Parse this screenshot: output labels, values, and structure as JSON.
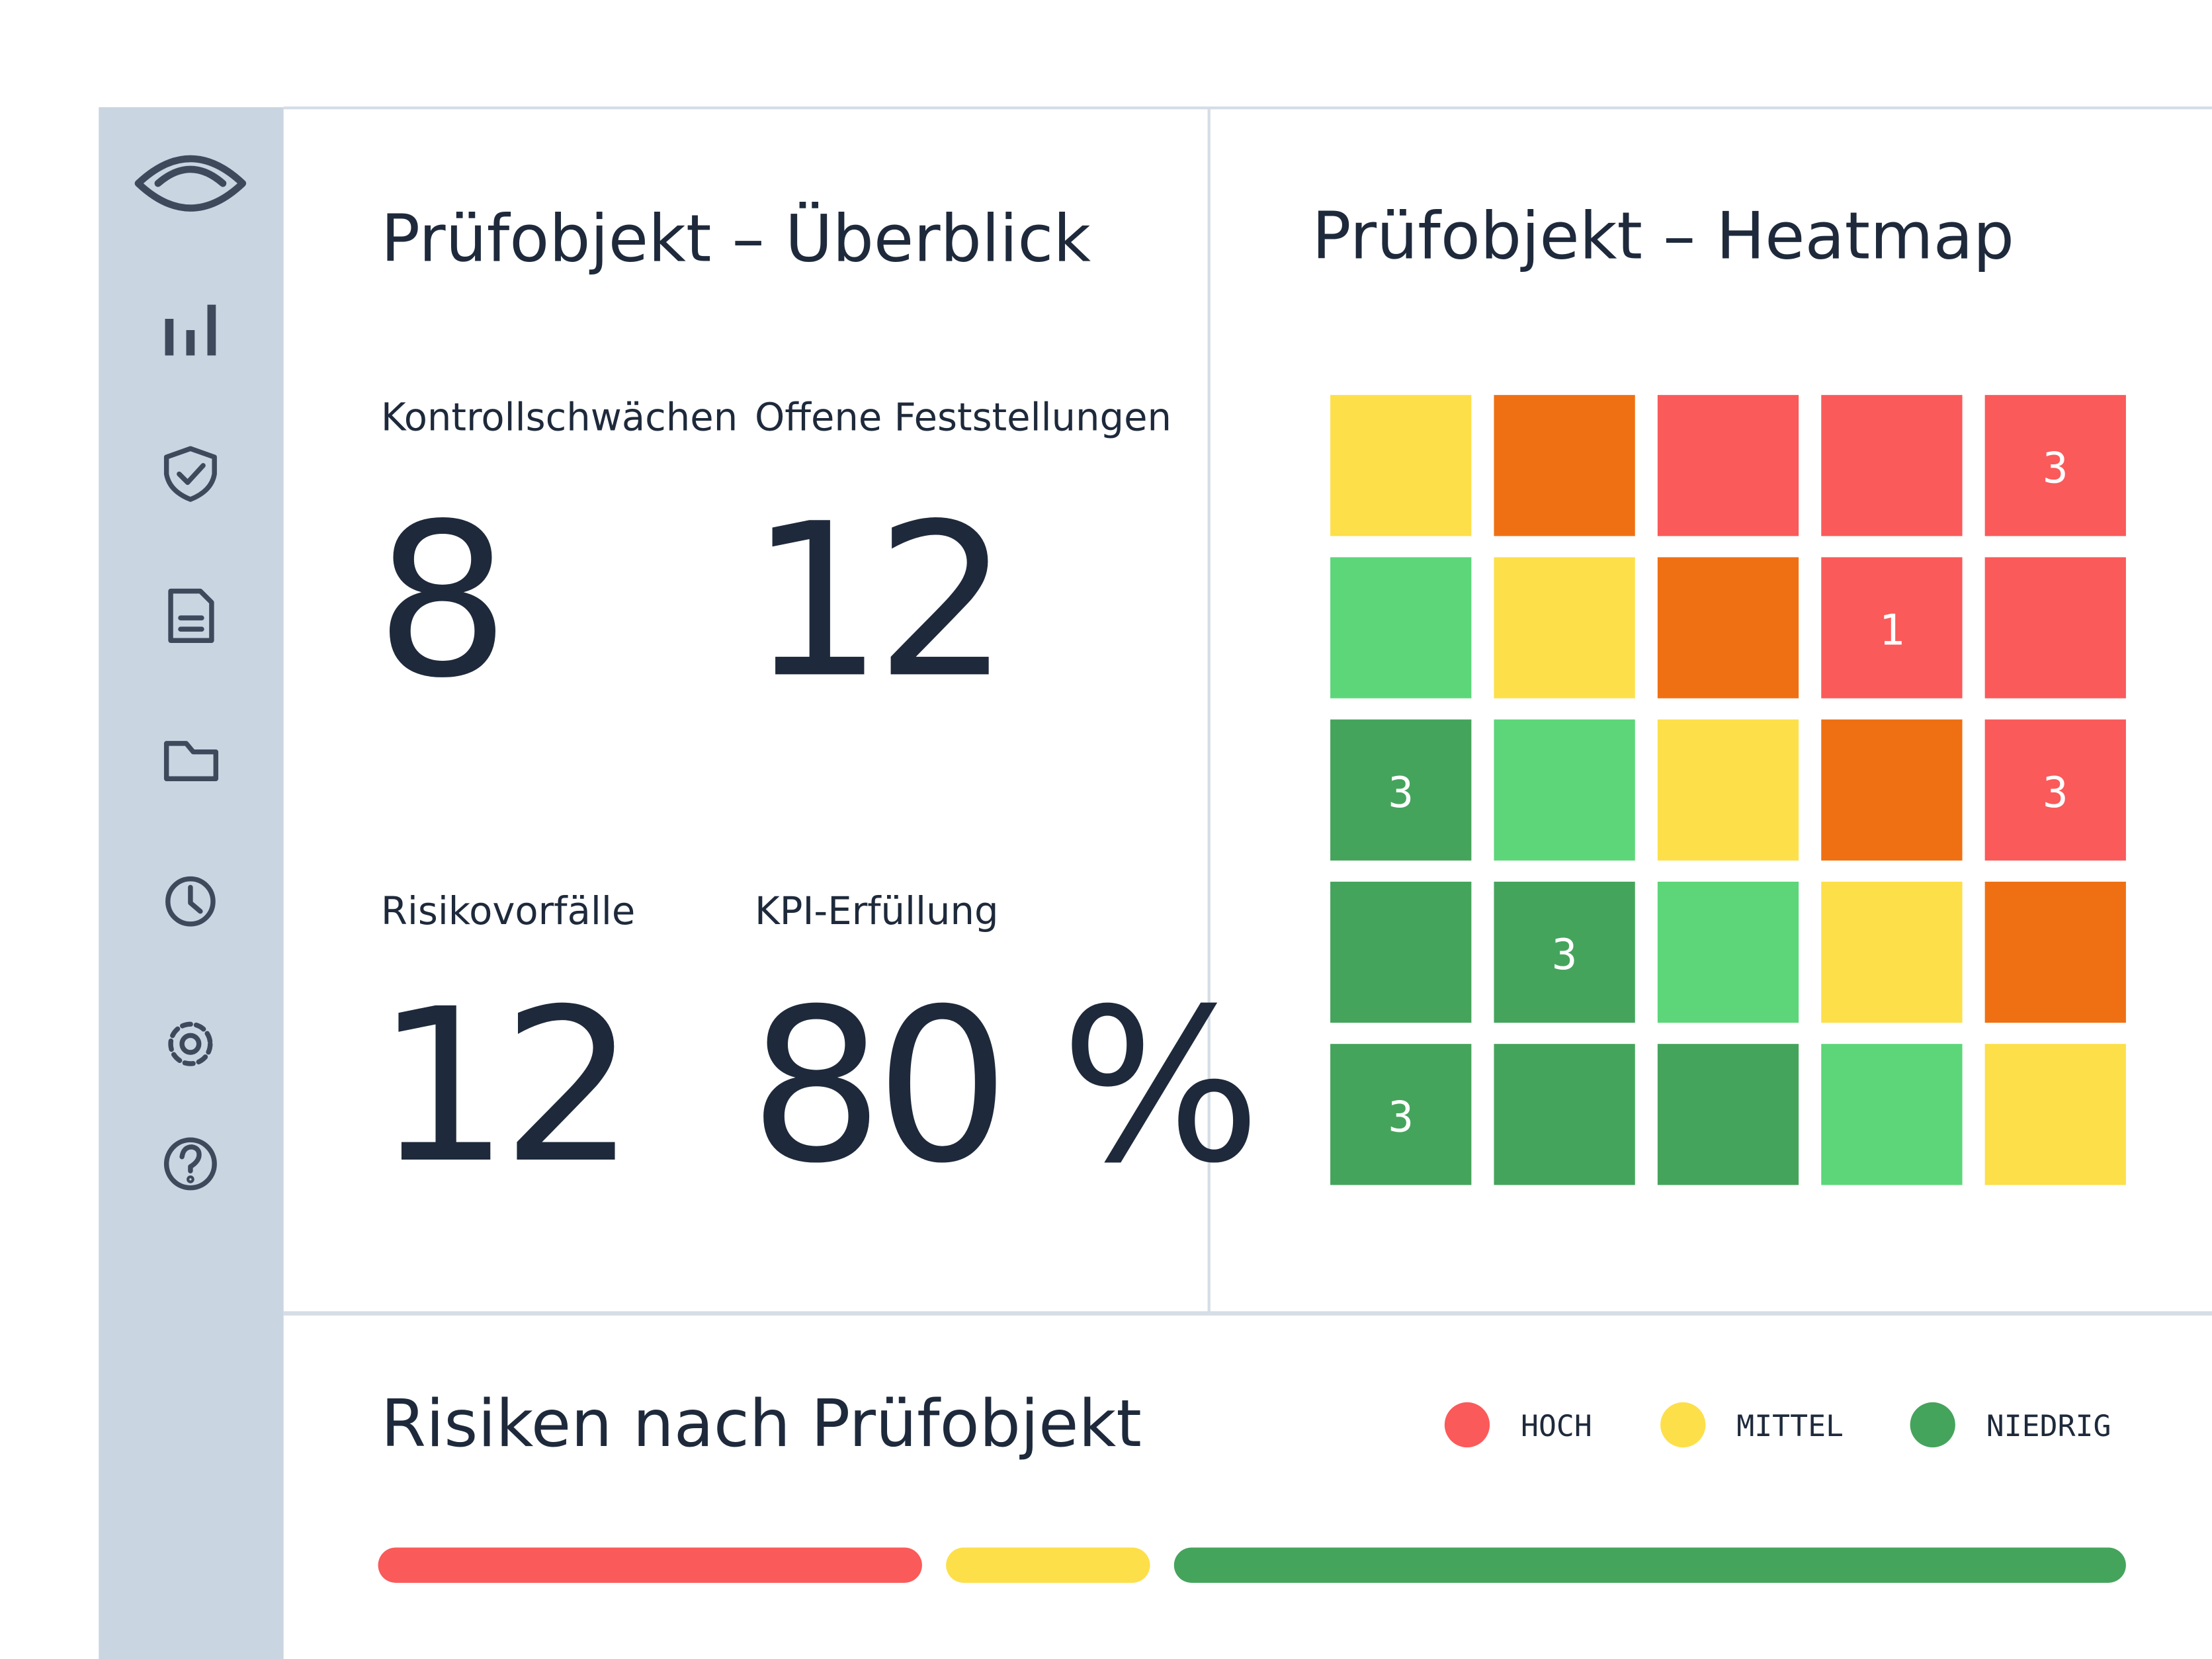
{
  "overview": {
    "title": "Prüfobjekt – Überblick",
    "kpis": [
      {
        "label": "Kontrollschwächen",
        "value": "8"
      },
      {
        "label": "Offene Feststellungen",
        "value": "12"
      },
      {
        "label": "Risikovorfälle",
        "value": "12"
      },
      {
        "label": "KPI-Erfüllung",
        "value": "80 %"
      }
    ]
  },
  "heatmap": {
    "title": "Prüfobjekt – Heatmap",
    "rows": [
      [
        {
          "color": "#fddf4a"
        },
        {
          "color": "#ef7013"
        },
        {
          "color": "#fa5a5a"
        },
        {
          "color": "#fa5a5a"
        },
        {
          "color": "#fa5a5a",
          "value": "3"
        }
      ],
      [
        {
          "color": "#5cd679"
        },
        {
          "color": "#fddf4a"
        },
        {
          "color": "#ef7013"
        },
        {
          "color": "#fa5a5a",
          "value": "1"
        },
        {
          "color": "#fa5a5a"
        }
      ],
      [
        {
          "color": "#45a45c",
          "value": "3"
        },
        {
          "color": "#5cd679"
        },
        {
          "color": "#fddf4a"
        },
        {
          "color": "#ef7013"
        },
        {
          "color": "#fa5a5a",
          "value": "3"
        }
      ],
      [
        {
          "color": "#45a45c"
        },
        {
          "color": "#45a45c",
          "value": "3"
        },
        {
          "color": "#5cd679"
        },
        {
          "color": "#fddf4a"
        },
        {
          "color": "#ef7013"
        }
      ],
      [
        {
          "color": "#45a45c",
          "value": "3"
        },
        {
          "color": "#45a45c"
        },
        {
          "color": "#45a45c"
        },
        {
          "color": "#5cd679"
        },
        {
          "color": "#fddf4a"
        }
      ]
    ]
  },
  "risks": {
    "title": "Risiken nach Prüfobjekt",
    "series": [
      {
        "name": "HOCH",
        "color": "#fa5a5a",
        "value": 32
      },
      {
        "name": "MITTEL",
        "color": "#fddf4a",
        "value": 12
      },
      {
        "name": "NIEDRIG",
        "color": "#45a45c",
        "value": 56
      }
    ]
  }
}
